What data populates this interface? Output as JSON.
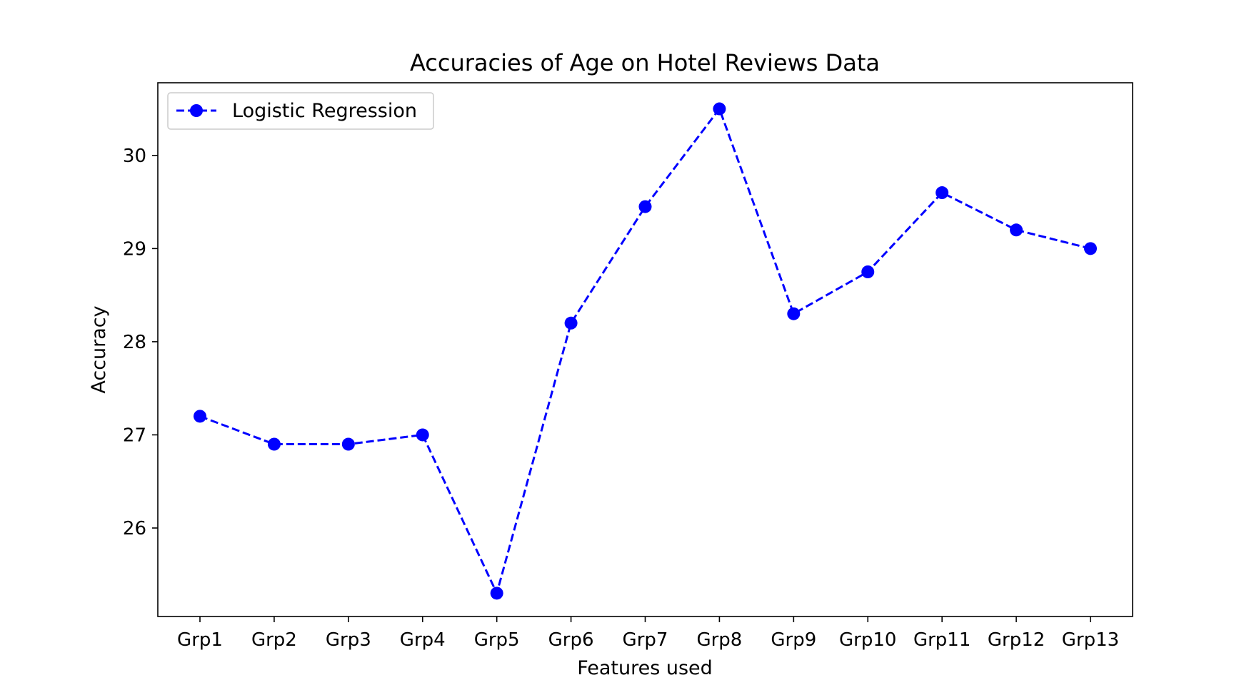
{
  "chart_data": {
    "type": "line",
    "title": "Accuracies of Age on Hotel Reviews Data",
    "xlabel": "Features used",
    "ylabel": "Accuracy",
    "categories": [
      "Grp1",
      "Grp2",
      "Grp3",
      "Grp4",
      "Grp5",
      "Grp6",
      "Grp7",
      "Grp8",
      "Grp9",
      "Grp10",
      "Grp11",
      "Grp12",
      "Grp13"
    ],
    "series": [
      {
        "name": "Logistic Regression",
        "color": "#0000ff",
        "line_style": "dashed",
        "marker": "circle",
        "values": [
          27.2,
          26.9,
          26.9,
          27.0,
          25.3,
          28.2,
          29.45,
          30.5,
          28.3,
          28.75,
          29.6,
          29.2,
          29.0
        ]
      }
    ],
    "ylim": [
      25.05,
      30.78
    ],
    "yticks": [
      26,
      27,
      28,
      29,
      30
    ],
    "grid": false,
    "legend_position": "top-left"
  }
}
